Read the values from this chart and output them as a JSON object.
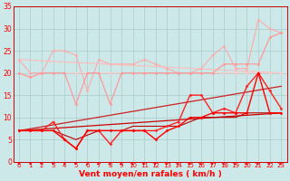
{
  "title": "",
  "xlabel": "Vent moyen/en rafales ( km/h )",
  "ylabel": "",
  "bg_color": "#cce8e8",
  "grid_color": "#aacccc",
  "xlim": [
    -0.5,
    23.5
  ],
  "ylim": [
    0,
    35
  ],
  "yticks": [
    0,
    5,
    10,
    15,
    20,
    25,
    30,
    35
  ],
  "x_ticks": [
    0,
    1,
    2,
    3,
    4,
    5,
    6,
    7,
    8,
    9,
    10,
    11,
    12,
    13,
    14,
    15,
    16,
    17,
    18,
    19,
    20,
    21,
    22,
    23
  ],
  "lines": [
    {
      "x": [
        0,
        1,
        2,
        3,
        4,
        5,
        6,
        7,
        8,
        9,
        10,
        11,
        12,
        13,
        14,
        15,
        16,
        17,
        18,
        19,
        20,
        21,
        22,
        23
      ],
      "y": [
        23,
        20,
        20,
        25,
        25,
        24,
        16,
        23,
        22,
        22,
        22,
        23,
        22,
        21,
        20,
        20,
        21,
        24,
        26,
        21,
        21,
        32,
        30,
        29
      ],
      "color": "#ffaaaa",
      "lw": 0.8,
      "marker": "D",
      "ms": 1.5,
      "zorder": 2
    },
    {
      "x": [
        0,
        23
      ],
      "y": [
        23,
        20
      ],
      "color": "#ffbbbb",
      "lw": 0.8,
      "marker": null,
      "ms": 0,
      "zorder": 2
    },
    {
      "x": [
        0,
        1,
        2,
        3,
        4,
        5,
        6,
        7,
        8,
        9,
        10,
        11,
        12,
        13,
        14,
        15,
        16,
        17,
        18,
        19,
        20,
        21,
        22,
        23
      ],
      "y": [
        20,
        19,
        20,
        20,
        20,
        20,
        20,
        20,
        20,
        20,
        20,
        20,
        20,
        20,
        20,
        20,
        20,
        20,
        20,
        20,
        20,
        20,
        20,
        20
      ],
      "color": "#ffcccc",
      "lw": 0.7,
      "marker": "D",
      "ms": 1.5,
      "zorder": 2
    },
    {
      "x": [
        0,
        1,
        2,
        3,
        4,
        5,
        6,
        7,
        8,
        9,
        10,
        11,
        12,
        13,
        14,
        15,
        16,
        17,
        18,
        19,
        20,
        21,
        22,
        23
      ],
      "y": [
        20,
        19,
        20,
        20,
        20,
        13,
        20,
        20,
        13,
        20,
        20,
        20,
        20,
        20,
        20,
        20,
        20,
        20,
        22,
        22,
        22,
        22,
        28,
        29
      ],
      "color": "#ff9999",
      "lw": 0.9,
      "marker": "D",
      "ms": 1.5,
      "zorder": 2
    },
    {
      "x": [
        0,
        1,
        2,
        3,
        4,
        5,
        6,
        7,
        8,
        9,
        10,
        11,
        12,
        13,
        14,
        15,
        16,
        17,
        18,
        19,
        20,
        21,
        22,
        23
      ],
      "y": [
        7,
        7,
        7,
        9,
        5,
        3,
        7,
        7,
        4,
        7,
        7,
        7,
        7,
        8,
        9,
        15,
        15,
        11,
        12,
        11,
        17,
        20,
        16,
        12
      ],
      "color": "#ff2222",
      "lw": 1.0,
      "marker": "D",
      "ms": 1.5,
      "zorder": 3
    },
    {
      "x": [
        0,
        1,
        2,
        3,
        4,
        5,
        6,
        7,
        8,
        9,
        10,
        11,
        12,
        13,
        14,
        15,
        16,
        17,
        18,
        19,
        20,
        21,
        22,
        23
      ],
      "y": [
        7,
        7,
        7,
        7,
        5,
        3,
        7,
        7,
        7,
        7,
        7,
        7,
        5,
        7,
        8,
        10,
        10,
        11,
        11,
        11,
        11,
        20,
        11,
        11
      ],
      "color": "#ff0000",
      "lw": 1.0,
      "marker": "D",
      "ms": 1.5,
      "zorder": 3
    },
    {
      "x": [
        0,
        23
      ],
      "y": [
        7,
        11
      ],
      "color": "#cc0000",
      "lw": 0.9,
      "marker": null,
      "ms": 0,
      "zorder": 2
    },
    {
      "x": [
        0,
        23
      ],
      "y": [
        7,
        17
      ],
      "color": "#cc2222",
      "lw": 0.9,
      "marker": null,
      "ms": 0,
      "zorder": 2
    },
    {
      "x": [
        0,
        1,
        2,
        3,
        4,
        5,
        6,
        7,
        8,
        9,
        10,
        11,
        12,
        13,
        14,
        15,
        16,
        17,
        18,
        19,
        20,
        21,
        22,
        23
      ],
      "y": [
        7,
        7,
        7,
        7,
        6,
        5,
        6,
        7,
        7,
        7,
        8,
        8,
        8,
        8,
        8,
        9,
        10,
        10,
        10,
        10,
        11,
        11,
        11,
        11
      ],
      "color": "#bb0000",
      "lw": 0.8,
      "marker": null,
      "ms": 0,
      "zorder": 2
    }
  ],
  "arrow_angles": [
    210,
    200,
    240,
    220,
    200,
    240,
    310,
    270,
    270,
    270,
    270,
    270,
    270,
    270,
    270,
    270,
    270,
    270,
    270,
    270,
    270,
    270,
    270,
    270
  ]
}
